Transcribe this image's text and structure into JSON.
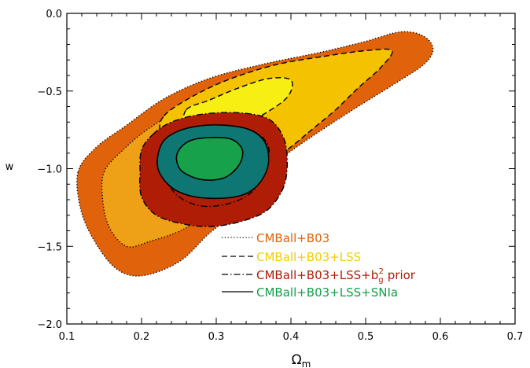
{
  "chart_data": {
    "type": "contour",
    "xlabel": "Ω",
    "xlabel_sub": "m",
    "ylabel": "w",
    "xlim": [
      0.1,
      0.7
    ],
    "ylim": [
      -2.0,
      0.0
    ],
    "x_ticks": [
      {
        "value": 0.1,
        "label": "0.1"
      },
      {
        "value": 0.2,
        "label": "0.2"
      },
      {
        "value": 0.3,
        "label": "0.3"
      },
      {
        "value": 0.4,
        "label": "0.4"
      },
      {
        "value": 0.5,
        "label": "0.5"
      },
      {
        "value": 0.6,
        "label": "0.6"
      },
      {
        "value": 0.7,
        "label": "0.7"
      }
    ],
    "y_ticks": [
      {
        "value": 0.0,
        "label": "0.0"
      },
      {
        "value": -0.5,
        "label": "−0.5"
      },
      {
        "value": -1.0,
        "label": "−1.0"
      },
      {
        "value": -1.5,
        "label": "−1.5"
      },
      {
        "value": -2.0,
        "label": "−2.0"
      }
    ],
    "legend": {
      "position": "bottom-right",
      "entries": [
        {
          "label": "CMBall+B03",
          "line_style": "dotted",
          "color": "#e0620a"
        },
        {
          "label": "CMBall+B03+LSS",
          "line_style": "dashed",
          "color": "#f2d600"
        },
        {
          "label_main": "CMBall+B03+LSS+b",
          "label_sub": "g",
          "label_sup": "2",
          "label_tail": " prior",
          "line_style": "dash-dot",
          "color": "#b01d06"
        },
        {
          "label": "CMBall+B03+LSS+SNIa",
          "line_style": "solid",
          "color": "#13a04a"
        }
      ]
    },
    "series": [
      {
        "dataset": "CMBall+B03",
        "level": "outer",
        "fill": "#e0620a",
        "line_style": "dotted",
        "points": [
          [
            0.115,
            -1.02
          ],
          [
            0.14,
            -0.86
          ],
          [
            0.18,
            -0.72
          ],
          [
            0.23,
            -0.55
          ],
          [
            0.29,
            -0.42
          ],
          [
            0.36,
            -0.33
          ],
          [
            0.44,
            -0.25
          ],
          [
            0.5,
            -0.18
          ],
          [
            0.545,
            -0.12
          ],
          [
            0.575,
            -0.14
          ],
          [
            0.59,
            -0.22
          ],
          [
            0.58,
            -0.32
          ],
          [
            0.54,
            -0.45
          ],
          [
            0.48,
            -0.63
          ],
          [
            0.42,
            -0.82
          ],
          [
            0.38,
            -0.96
          ],
          [
            0.35,
            -1.1
          ],
          [
            0.33,
            -1.26
          ],
          [
            0.29,
            -1.42
          ],
          [
            0.25,
            -1.6
          ],
          [
            0.2,
            -1.69
          ],
          [
            0.165,
            -1.64
          ],
          [
            0.135,
            -1.45
          ],
          [
            0.118,
            -1.25
          ]
        ]
      },
      {
        "dataset": "CMBall+B03",
        "level": "inner",
        "fill": "#eea016",
        "line_style": "dotted",
        "points": [
          [
            0.15,
            -1.02
          ],
          [
            0.175,
            -0.88
          ],
          [
            0.21,
            -0.74
          ],
          [
            0.26,
            -0.6
          ],
          [
            0.31,
            -0.51
          ],
          [
            0.36,
            -0.44
          ],
          [
            0.42,
            -0.38
          ],
          [
            0.465,
            -0.35
          ],
          [
            0.48,
            -0.4
          ],
          [
            0.465,
            -0.5
          ],
          [
            0.42,
            -0.66
          ],
          [
            0.37,
            -0.86
          ],
          [
            0.33,
            -1.04
          ],
          [
            0.3,
            -1.22
          ],
          [
            0.26,
            -1.38
          ],
          [
            0.21,
            -1.47
          ],
          [
            0.18,
            -1.5
          ],
          [
            0.157,
            -1.38
          ],
          [
            0.148,
            -1.2
          ]
        ]
      },
      {
        "dataset": "CMBall+B03+LSS",
        "level": "outer",
        "fill": "#f5c200",
        "line_style": "dashed",
        "points": [
          [
            0.23,
            -0.66
          ],
          [
            0.27,
            -0.53
          ],
          [
            0.32,
            -0.42
          ],
          [
            0.38,
            -0.33
          ],
          [
            0.44,
            -0.28
          ],
          [
            0.5,
            -0.24
          ],
          [
            0.535,
            -0.24
          ],
          [
            0.52,
            -0.35
          ],
          [
            0.49,
            -0.48
          ],
          [
            0.46,
            -0.62
          ],
          [
            0.43,
            -0.74
          ],
          [
            0.4,
            -0.86
          ],
          [
            0.37,
            -0.96
          ],
          [
            0.33,
            -1.06
          ],
          [
            0.29,
            -1.1
          ],
          [
            0.255,
            -1.04
          ],
          [
            0.235,
            -0.9
          ],
          [
            0.225,
            -0.78
          ]
        ]
      },
      {
        "dataset": "CMBall+B03+LSS",
        "level": "inner",
        "fill": "#f7ee14",
        "line_style": "dashed",
        "points": [
          [
            0.26,
            -0.62
          ],
          [
            0.29,
            -0.56
          ],
          [
            0.33,
            -0.48
          ],
          [
            0.37,
            -0.42
          ],
          [
            0.4,
            -0.43
          ],
          [
            0.395,
            -0.54
          ],
          [
            0.36,
            -0.66
          ],
          [
            0.32,
            -0.76
          ],
          [
            0.28,
            -0.8
          ],
          [
            0.258,
            -0.74
          ]
        ]
      },
      {
        "dataset": "CMBall+B03+LSS+b_g^2 prior",
        "level": "outer",
        "fill": "#b01d06",
        "line_style": "dash-dot",
        "points": [
          [
            0.215,
            -0.78
          ],
          [
            0.24,
            -0.7
          ],
          [
            0.28,
            -0.65
          ],
          [
            0.33,
            -0.64
          ],
          [
            0.37,
            -0.68
          ],
          [
            0.39,
            -0.8
          ],
          [
            0.395,
            -0.96
          ],
          [
            0.39,
            -1.12
          ],
          [
            0.37,
            -1.26
          ],
          [
            0.34,
            -1.33
          ],
          [
            0.3,
            -1.37
          ],
          [
            0.26,
            -1.36
          ],
          [
            0.22,
            -1.3
          ],
          [
            0.2,
            -1.18
          ],
          [
            0.198,
            -1.02
          ],
          [
            0.2,
            -0.88
          ]
        ]
      },
      {
        "dataset": "CMBall+B03+LSS+b_g^2 prior",
        "level": "inner",
        "fill": "#b01d06",
        "line_style": "dash-dot",
        "points": [
          [
            0.24,
            -0.84
          ],
          [
            0.27,
            -0.75
          ],
          [
            0.31,
            -0.72
          ],
          [
            0.35,
            -0.76
          ],
          [
            0.37,
            -0.86
          ],
          [
            0.365,
            -1.0
          ],
          [
            0.35,
            -1.14
          ],
          [
            0.32,
            -1.22
          ],
          [
            0.28,
            -1.24
          ],
          [
            0.245,
            -1.16
          ],
          [
            0.232,
            -1.0
          ]
        ]
      },
      {
        "dataset": "CMBall+B03+LSS+SNIa",
        "level": "outer",
        "fill": "#0f7773",
        "line_style": "solid",
        "points": [
          [
            0.225,
            -0.86
          ],
          [
            0.24,
            -0.78
          ],
          [
            0.27,
            -0.73
          ],
          [
            0.31,
            -0.72
          ],
          [
            0.345,
            -0.75
          ],
          [
            0.365,
            -0.83
          ],
          [
            0.37,
            -0.96
          ],
          [
            0.36,
            -1.08
          ],
          [
            0.34,
            -1.16
          ],
          [
            0.31,
            -1.19
          ],
          [
            0.27,
            -1.18
          ],
          [
            0.24,
            -1.12
          ],
          [
            0.222,
            -1.0
          ]
        ]
      },
      {
        "dataset": "CMBall+B03+LSS+SNIa",
        "level": "inner",
        "fill": "#16a14a",
        "line_style": "solid",
        "points": [
          [
            0.25,
            -0.88
          ],
          [
            0.265,
            -0.82
          ],
          [
            0.29,
            -0.8
          ],
          [
            0.32,
            -0.81
          ],
          [
            0.335,
            -0.88
          ],
          [
            0.33,
            -0.98
          ],
          [
            0.31,
            -1.06
          ],
          [
            0.28,
            -1.07
          ],
          [
            0.255,
            -1.02
          ],
          [
            0.247,
            -0.95
          ]
        ]
      }
    ]
  }
}
